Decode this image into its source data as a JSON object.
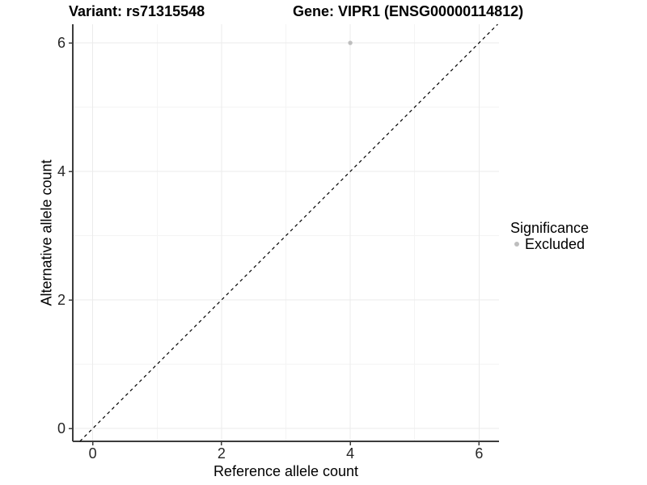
{
  "page": {
    "background": "#ffffff"
  },
  "chart_data": {
    "type": "scatter",
    "titles": {
      "left": "Variant: rs71315548",
      "right": "Gene: VIPR1 (ENSG00000114812)"
    },
    "xlabel": "Reference allele count",
    "ylabel": "Alternative allele count",
    "xlim": [
      -0.31,
      6.31
    ],
    "ylim": [
      -0.2,
      6.29
    ],
    "xticks": [
      0,
      2,
      4,
      6
    ],
    "yticks": [
      0,
      2,
      4,
      6
    ],
    "minor_gridlines_x": [
      1,
      3,
      5
    ],
    "minor_gridlines_y": [
      1,
      3,
      5
    ],
    "grid": true,
    "identity_line": {
      "slope": 1,
      "intercept": 0,
      "style": "dashed",
      "color": "#000000"
    },
    "series": [
      {
        "name": "Excluded",
        "color": "#bebebe",
        "point_radius": 2.7,
        "points": [
          [
            4,
            6
          ]
        ]
      }
    ],
    "legend": {
      "position": "right",
      "title": "Significance",
      "items": [
        {
          "label": "Excluded",
          "color": "#bebebe"
        }
      ]
    },
    "colors": {
      "grid_major": "#ebebeb",
      "grid_minor": "#f4f4f4",
      "axis": "#3c3c3c",
      "tick_text": "#262626"
    }
  }
}
